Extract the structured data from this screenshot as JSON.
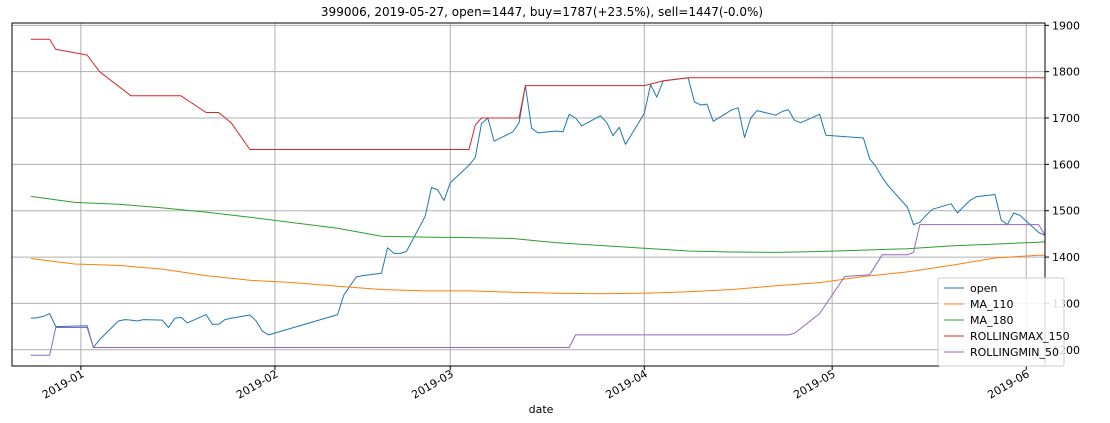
{
  "chart_data": {
    "type": "line",
    "title": "399006, 2019-05-27, open=1447, buy=1787(+23.5%), sell=1447(-0.0%)",
    "xlabel": "date",
    "ylabel": "",
    "ylim": [
      1165,
      1905
    ],
    "xlim": [
      "2018-12-21",
      "2019-06-04"
    ],
    "y_axis_side": "right",
    "grid": true,
    "legend_position": "lower right",
    "x_ticks": [
      {
        "date": "2019-01-01",
        "label": "2019-01"
      },
      {
        "date": "2019-02-01",
        "label": "2019-02"
      },
      {
        "date": "2019-03-01",
        "label": "2019-03"
      },
      {
        "date": "2019-04-01",
        "label": "2019-04"
      },
      {
        "date": "2019-05-01",
        "label": "2019-05"
      },
      {
        "date": "2019-06-01",
        "label": "2019-06"
      }
    ],
    "y_ticks": [
      1200,
      1300,
      1400,
      1500,
      1600,
      1700,
      1800,
      1900
    ],
    "series": [
      {
        "name": "open",
        "color": "#1f77b4",
        "points": [
          [
            "2018-12-24",
            1268
          ],
          [
            "2018-12-25",
            1269
          ],
          [
            "2018-12-26",
            1272
          ],
          [
            "2018-12-27",
            1278
          ],
          [
            "2018-12-28",
            1250
          ],
          [
            "2019-01-02",
            1252
          ],
          [
            "2019-01-03",
            1205
          ],
          [
            "2019-01-04",
            1222
          ],
          [
            "2019-01-07",
            1262
          ],
          [
            "2019-01-08",
            1265
          ],
          [
            "2019-01-09",
            1264
          ],
          [
            "2019-01-10",
            1262
          ],
          [
            "2019-01-11",
            1265
          ],
          [
            "2019-01-14",
            1264
          ],
          [
            "2019-01-15",
            1248
          ],
          [
            "2019-01-16",
            1268
          ],
          [
            "2019-01-17",
            1270
          ],
          [
            "2019-01-18",
            1258
          ],
          [
            "2019-01-21",
            1276
          ],
          [
            "2019-01-22",
            1255
          ],
          [
            "2019-01-23",
            1255
          ],
          [
            "2019-01-24",
            1265
          ],
          [
            "2019-01-25",
            1268
          ],
          [
            "2019-01-28",
            1275
          ],
          [
            "2019-01-29",
            1262
          ],
          [
            "2019-01-30",
            1240
          ],
          [
            "2019-01-31",
            1232
          ],
          [
            "2019-02-11",
            1276
          ],
          [
            "2019-02-12",
            1318
          ],
          [
            "2019-02-13",
            1338
          ],
          [
            "2019-02-14",
            1357
          ],
          [
            "2019-02-15",
            1360
          ],
          [
            "2019-02-18",
            1365
          ],
          [
            "2019-02-19",
            1420
          ],
          [
            "2019-02-20",
            1408
          ],
          [
            "2019-02-21",
            1408
          ],
          [
            "2019-02-22",
            1412
          ],
          [
            "2019-02-25",
            1488
          ],
          [
            "2019-02-26",
            1550
          ],
          [
            "2019-02-27",
            1545
          ],
          [
            "2019-02-28",
            1522
          ],
          [
            "2019-03-01",
            1560
          ],
          [
            "2019-03-04",
            1598
          ],
          [
            "2019-03-05",
            1615
          ],
          [
            "2019-03-06",
            1688
          ],
          [
            "2019-03-07",
            1700
          ],
          [
            "2019-03-08",
            1650
          ],
          [
            "2019-03-11",
            1670
          ],
          [
            "2019-03-12",
            1690
          ],
          [
            "2019-03-13",
            1770
          ],
          [
            "2019-03-14",
            1678
          ],
          [
            "2019-03-15",
            1668
          ],
          [
            "2019-03-18",
            1672
          ],
          [
            "2019-03-19",
            1670
          ],
          [
            "2019-03-20",
            1708
          ],
          [
            "2019-03-21",
            1700
          ],
          [
            "2019-03-22",
            1683
          ],
          [
            "2019-03-25",
            1705
          ],
          [
            "2019-03-26",
            1690
          ],
          [
            "2019-03-27",
            1662
          ],
          [
            "2019-03-28",
            1680
          ],
          [
            "2019-03-29",
            1643
          ],
          [
            "2019-04-01",
            1710
          ],
          [
            "2019-04-02",
            1772
          ],
          [
            "2019-04-03",
            1745
          ],
          [
            "2019-04-04",
            1780
          ],
          [
            "2019-04-08",
            1787
          ],
          [
            "2019-04-09",
            1735
          ],
          [
            "2019-04-10",
            1728
          ],
          [
            "2019-04-11",
            1730
          ],
          [
            "2019-04-12",
            1693
          ],
          [
            "2019-04-15",
            1718
          ],
          [
            "2019-04-16",
            1722
          ],
          [
            "2019-04-17",
            1658
          ],
          [
            "2019-04-18",
            1700
          ],
          [
            "2019-04-19",
            1716
          ],
          [
            "2019-04-22",
            1706
          ],
          [
            "2019-04-23",
            1714
          ],
          [
            "2019-04-24",
            1718
          ],
          [
            "2019-04-25",
            1695
          ],
          [
            "2019-04-26",
            1690
          ],
          [
            "2019-04-29",
            1708
          ],
          [
            "2019-04-30",
            1663
          ],
          [
            "2019-05-06",
            1657
          ],
          [
            "2019-05-07",
            1612
          ],
          [
            "2019-05-08",
            1595
          ],
          [
            "2019-05-09",
            1572
          ],
          [
            "2019-05-10",
            1553
          ],
          [
            "2019-05-13",
            1508
          ],
          [
            "2019-05-14",
            1470
          ],
          [
            "2019-05-15",
            1475
          ],
          [
            "2019-05-16",
            1490
          ],
          [
            "2019-05-17",
            1503
          ],
          [
            "2019-05-20",
            1515
          ],
          [
            "2019-05-21",
            1495
          ],
          [
            "2019-05-22",
            1509
          ],
          [
            "2019-05-23",
            1522
          ],
          [
            "2019-05-24",
            1530
          ],
          [
            "2019-05-27",
            1535
          ],
          [
            "2019-05-28",
            1480
          ],
          [
            "2019-05-29",
            1470
          ],
          [
            "2019-05-30",
            1495
          ],
          [
            "2019-05-31",
            1490
          ],
          [
            "2019-06-03",
            1453
          ],
          [
            "2019-06-04",
            1447
          ]
        ]
      },
      {
        "name": "MA_110",
        "color": "#ff7f0e",
        "points": [
          [
            "2018-12-24",
            1397
          ],
          [
            "2018-12-31",
            1385
          ],
          [
            "2019-01-07",
            1382
          ],
          [
            "2019-01-14",
            1374
          ],
          [
            "2019-01-21",
            1360
          ],
          [
            "2019-01-28",
            1350
          ],
          [
            "2019-02-04",
            1345
          ],
          [
            "2019-02-11",
            1337
          ],
          [
            "2019-02-18",
            1330
          ],
          [
            "2019-02-25",
            1327
          ],
          [
            "2019-03-04",
            1327
          ],
          [
            "2019-03-11",
            1324
          ],
          [
            "2019-03-18",
            1322
          ],
          [
            "2019-03-25",
            1321
          ],
          [
            "2019-04-01",
            1322
          ],
          [
            "2019-04-08",
            1325
          ],
          [
            "2019-04-15",
            1330
          ],
          [
            "2019-04-22",
            1338
          ],
          [
            "2019-04-29",
            1345
          ],
          [
            "2019-05-06",
            1358
          ],
          [
            "2019-05-13",
            1368
          ],
          [
            "2019-05-20",
            1382
          ],
          [
            "2019-05-27",
            1398
          ],
          [
            "2019-06-03",
            1404
          ],
          [
            "2019-06-04",
            1404
          ]
        ]
      },
      {
        "name": "MA_180",
        "color": "#2ca02c",
        "points": [
          [
            "2018-12-24",
            1531
          ],
          [
            "2018-12-31",
            1518
          ],
          [
            "2019-01-07",
            1514
          ],
          [
            "2019-01-14",
            1506
          ],
          [
            "2019-01-21",
            1497
          ],
          [
            "2019-01-28",
            1486
          ],
          [
            "2019-02-04",
            1474
          ],
          [
            "2019-02-11",
            1462
          ],
          [
            "2019-02-18",
            1445
          ],
          [
            "2019-02-25",
            1443
          ],
          [
            "2019-03-04",
            1442
          ],
          [
            "2019-03-11",
            1440
          ],
          [
            "2019-03-18",
            1431
          ],
          [
            "2019-03-25",
            1425
          ],
          [
            "2019-04-01",
            1419
          ],
          [
            "2019-04-08",
            1413
          ],
          [
            "2019-04-15",
            1411
          ],
          [
            "2019-04-22",
            1410
          ],
          [
            "2019-04-29",
            1412
          ],
          [
            "2019-05-06",
            1415
          ],
          [
            "2019-05-13",
            1418
          ],
          [
            "2019-05-20",
            1424
          ],
          [
            "2019-05-27",
            1428
          ],
          [
            "2019-06-03",
            1432
          ],
          [
            "2019-06-04",
            1433
          ]
        ]
      },
      {
        "name": "ROLLINGMAX_150",
        "color": "#d62728",
        "points": [
          [
            "2018-12-24",
            1870
          ],
          [
            "2018-12-27",
            1870
          ],
          [
            "2018-12-28",
            1848
          ],
          [
            "2019-01-02",
            1836
          ],
          [
            "2019-01-04",
            1800
          ],
          [
            "2019-01-09",
            1748
          ],
          [
            "2019-01-17",
            1748
          ],
          [
            "2019-01-21",
            1712
          ],
          [
            "2019-01-23",
            1712
          ],
          [
            "2019-01-25",
            1690
          ],
          [
            "2019-01-28",
            1632
          ],
          [
            "2019-03-01",
            1632
          ],
          [
            "2019-03-04",
            1632
          ],
          [
            "2019-03-05",
            1685
          ],
          [
            "2019-03-06",
            1700
          ],
          [
            "2019-03-12",
            1700
          ],
          [
            "2019-03-13",
            1770
          ],
          [
            "2019-04-01",
            1770
          ],
          [
            "2019-04-04",
            1780
          ],
          [
            "2019-04-08",
            1787
          ],
          [
            "2019-06-04",
            1787
          ]
        ]
      },
      {
        "name": "ROLLINGMIN_50",
        "color": "#9467bd",
        "points": [
          [
            "2018-12-24",
            1188
          ],
          [
            "2018-12-27",
            1188
          ],
          [
            "2018-12-28",
            1248
          ],
          [
            "2019-01-02",
            1248
          ],
          [
            "2019-01-03",
            1205
          ],
          [
            "2019-03-20",
            1205
          ],
          [
            "2019-03-21",
            1232
          ],
          [
            "2019-04-24",
            1232
          ],
          [
            "2019-04-25",
            1236
          ],
          [
            "2019-04-29",
            1278
          ],
          [
            "2019-05-01",
            1318
          ],
          [
            "2019-05-03",
            1358
          ],
          [
            "2019-05-07",
            1362
          ],
          [
            "2019-05-09",
            1405
          ],
          [
            "2019-05-13",
            1405
          ],
          [
            "2019-05-14",
            1410
          ],
          [
            "2019-05-15",
            1470
          ],
          [
            "2019-05-27",
            1470
          ],
          [
            "2019-06-03",
            1470
          ],
          [
            "2019-06-04",
            1447
          ]
        ]
      }
    ]
  }
}
